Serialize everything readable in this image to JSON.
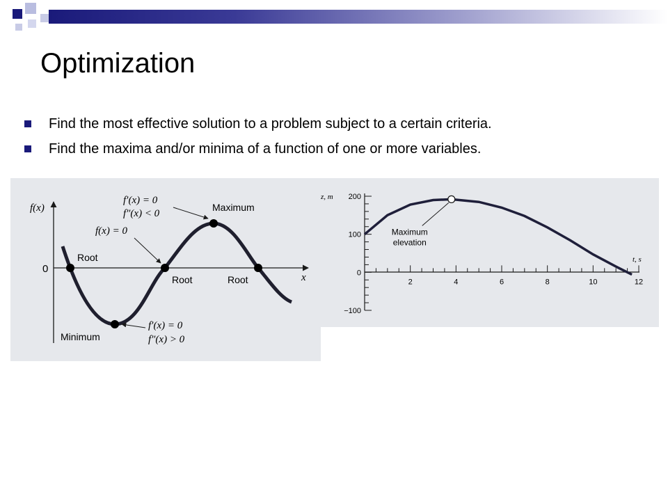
{
  "slide": {
    "title": "Optimization",
    "bullets": [
      "Find the most effective solution to a problem subject to a certain criteria.",
      "Find the maxima and/or minima of a function of one or more variables."
    ],
    "colors": {
      "accent": "#1a1a7a",
      "figure_bg": "#e6e8ec"
    }
  },
  "figure_left": {
    "y_axis_label": "f(x)",
    "x_axis_label": "x",
    "zero_label": "0",
    "labels": {
      "root_left": "Root",
      "root_middle": "Root",
      "root_right": "Root",
      "maximum": "Maximum",
      "minimum": "Minimum",
      "max_cond_1": "f′(x) = 0",
      "max_cond_2": "f″(x) < 0",
      "root_cond": "f(x) = 0",
      "min_cond_1": "f′(x) = 0",
      "min_cond_2": "f″(x) > 0"
    }
  },
  "chart_data": {
    "type": "line",
    "title": "",
    "xlabel": "t, s",
    "ylabel": "z, m",
    "xlim": [
      0,
      12
    ],
    "ylim": [
      -100,
      200
    ],
    "xticks": [
      "2",
      "4",
      "6",
      "8",
      "10",
      "12"
    ],
    "yticks": [
      "200",
      "100",
      "0",
      "−100"
    ],
    "x": [
      0,
      1,
      2,
      3,
      3.8,
      5,
      6,
      7,
      8,
      9,
      10,
      11,
      11.7
    ],
    "y": [
      100,
      150,
      178,
      190,
      192,
      185,
      170,
      148,
      118,
      84,
      47,
      15,
      -6
    ],
    "annotation": {
      "text_line1": "Maximum",
      "text_line2": "elevation",
      "x": 3.8,
      "y": 192
    }
  }
}
